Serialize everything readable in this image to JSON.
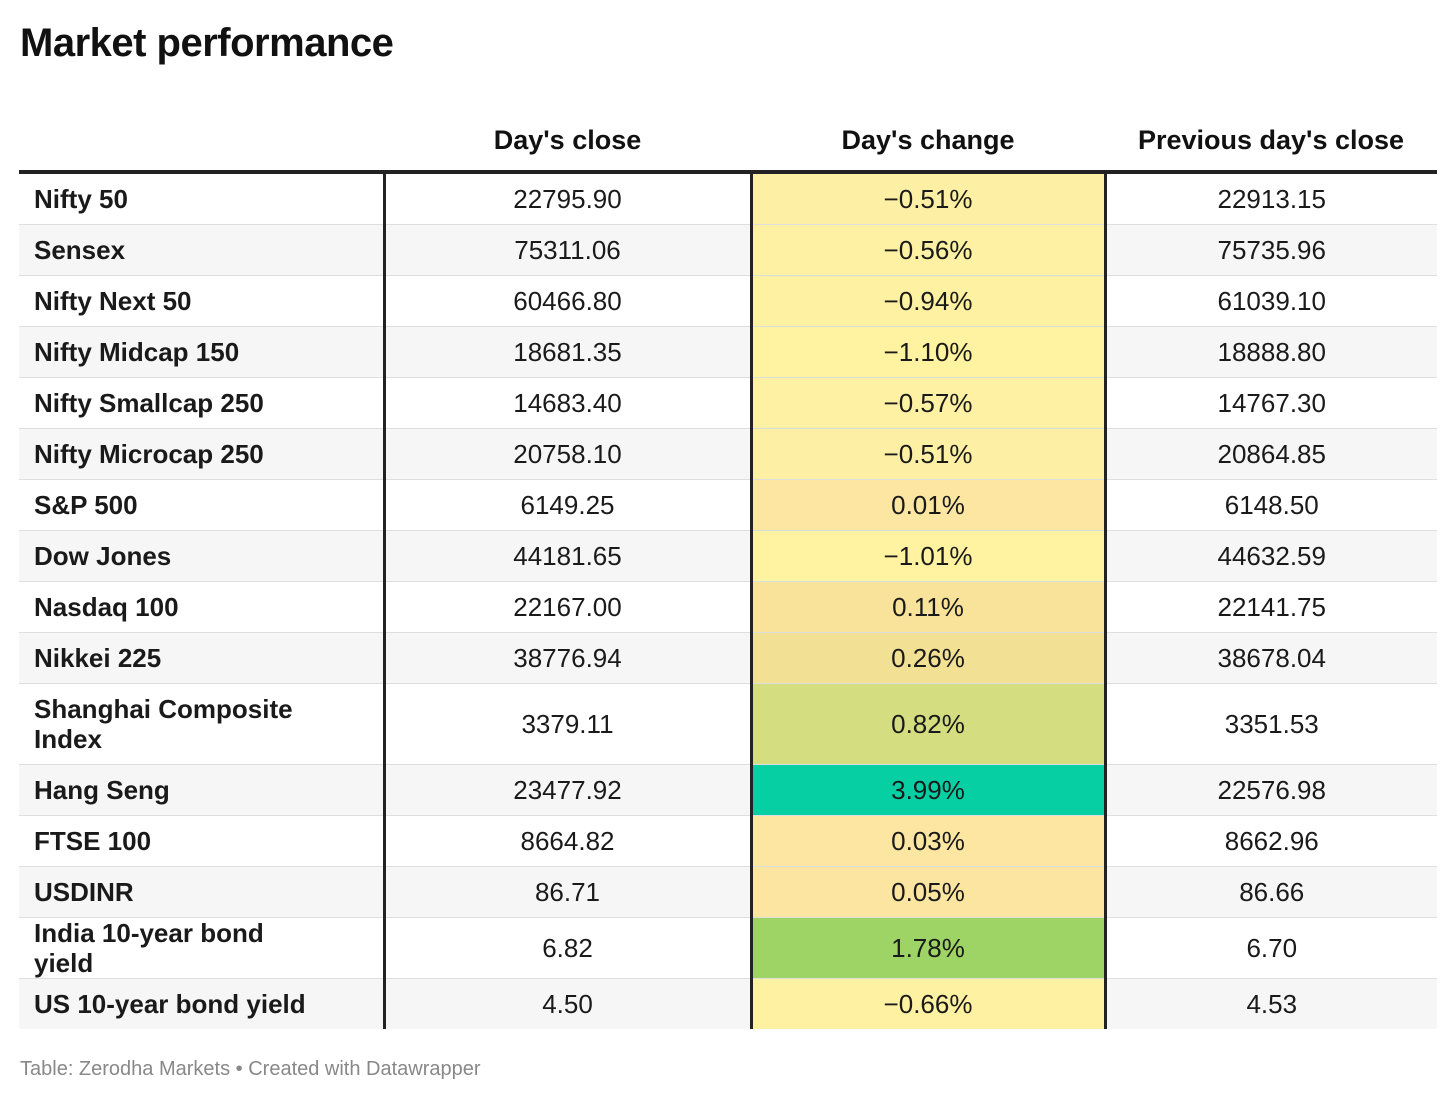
{
  "title": "Market performance",
  "source_text": "Table: Zerodha Markets • Created with Datawrapper",
  "chart_data": {
    "type": "table",
    "title": "Market performance",
    "columns": [
      "",
      "Day's close",
      "Day's change",
      "Previous day's close"
    ],
    "rows": [
      {
        "name": "Nifty 50",
        "close": "22795.90",
        "change": "−0.51%",
        "prev": "22913.15",
        "change_value": -0.51,
        "color": "#fdf0a4"
      },
      {
        "name": "Sensex",
        "close": "75311.06",
        "change": "−0.56%",
        "prev": "75735.96",
        "change_value": -0.56,
        "color": "#fef1a3"
      },
      {
        "name": "Nifty Next 50",
        "close": "60466.80",
        "change": "−0.94%",
        "prev": "61039.10",
        "change_value": -0.94,
        "color": "#fef1a1"
      },
      {
        "name": "Nifty Midcap 150",
        "close": "18681.35",
        "change": "−1.10%",
        "prev": "18888.80",
        "change_value": -1.1,
        "color": "#fff2a0"
      },
      {
        "name": "Nifty Smallcap 250",
        "close": "14683.40",
        "change": "−0.57%",
        "prev": "14767.30",
        "change_value": -0.57,
        "color": "#fef1a3"
      },
      {
        "name": "Nifty Microcap 250",
        "close": "20758.10",
        "change": "−0.51%",
        "prev": "20864.85",
        "change_value": -0.51,
        "color": "#fdf0a4"
      },
      {
        "name": "S&P 500",
        "close": "6149.25",
        "change": "0.01%",
        "prev": "6148.50",
        "change_value": 0.01,
        "color": "#fce6a2"
      },
      {
        "name": "Dow Jones",
        "close": "44181.65",
        "change": "−1.01%",
        "prev": "44632.59",
        "change_value": -1.01,
        "color": "#fff2a0"
      },
      {
        "name": "Nasdaq 100",
        "close": "22167.00",
        "change": "0.11%",
        "prev": "22141.75",
        "change_value": 0.11,
        "color": "#f9e39a"
      },
      {
        "name": "Nikkei 225",
        "close": "38776.94",
        "change": "0.26%",
        "prev": "38678.04",
        "change_value": 0.26,
        "color": "#f2e094"
      },
      {
        "name": "Shanghai Composite Index",
        "close": "3379.11",
        "change": "0.82%",
        "prev": "3351.53",
        "change_value": 0.82,
        "color": "#d4de80",
        "tall": true
      },
      {
        "name": "Hang Seng",
        "close": "23477.92",
        "change": "3.99%",
        "prev": "22576.98",
        "change_value": 3.99,
        "color": "#06cfa4"
      },
      {
        "name": "FTSE 100",
        "close": "8664.82",
        "change": "0.03%",
        "prev": "8662.96",
        "change_value": 0.03,
        "color": "#fce6a2"
      },
      {
        "name": "USDINR",
        "close": "86.71",
        "change": "0.05%",
        "prev": "86.66",
        "change_value": 0.05,
        "color": "#fbe5a1"
      },
      {
        "name": "India 10-year bond yield",
        "close": "6.82",
        "change": "1.78%",
        "prev": "6.70",
        "change_value": 1.78,
        "color": "#9ed365"
      },
      {
        "name": "US 10-year bond yield",
        "close": "4.50",
        "change": "−0.66%",
        "prev": "4.53",
        "change_value": -0.66,
        "color": "#fef1a2"
      }
    ]
  }
}
